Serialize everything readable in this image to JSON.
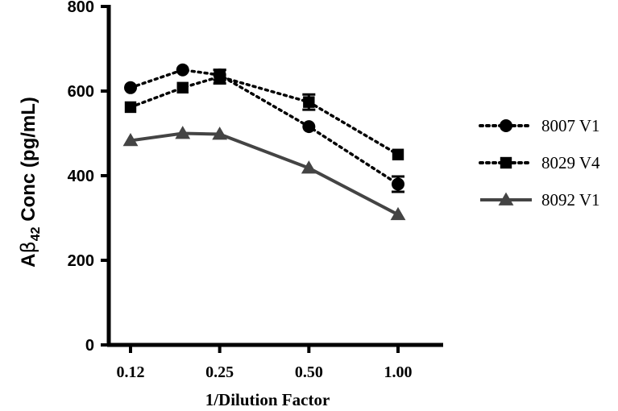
{
  "chart_data": {
    "type": "line",
    "title": "",
    "xlabel": "1/Dilution Factor",
    "ylabel_prefix": "A",
    "ylabel_beta": "β",
    "ylabel_sub": "42",
    "ylabel_suffix": " Conc (pg/mL)",
    "ylim": [
      0,
      800
    ],
    "yticks": [
      "0",
      "200",
      "400",
      "600",
      "800"
    ],
    "x_positions": [
      0.125,
      0.1875,
      0.25,
      0.5,
      1.0
    ],
    "xticks": [
      {
        "x": 0.125,
        "label": "0.12"
      },
      {
        "x": 0.25,
        "label": "0.25"
      },
      {
        "x": 0.5,
        "label": "0.50"
      },
      {
        "x": 1.0,
        "label": "1.00"
      }
    ],
    "x_scale": "log2",
    "legend_position": "right",
    "series": [
      {
        "name": "8007 V1",
        "marker": "circle",
        "line": "dotted",
        "color": "#000000",
        "values": [
          608,
          650,
          638,
          516,
          380
        ],
        "errors": [
          0,
          0,
          12,
          0,
          18
        ]
      },
      {
        "name": "8029 V4",
        "marker": "square",
        "line": "dotted",
        "color": "#000000",
        "values": [
          562,
          608,
          634,
          574,
          450
        ],
        "errors": [
          0,
          0,
          16,
          18,
          0
        ]
      },
      {
        "name": "8092 V1",
        "marker": "triangle",
        "line": "solid",
        "color": "#444444",
        "values": [
          483,
          500,
          498,
          418,
          308
        ],
        "errors": [
          0,
          0,
          0,
          0,
          0
        ]
      }
    ]
  }
}
